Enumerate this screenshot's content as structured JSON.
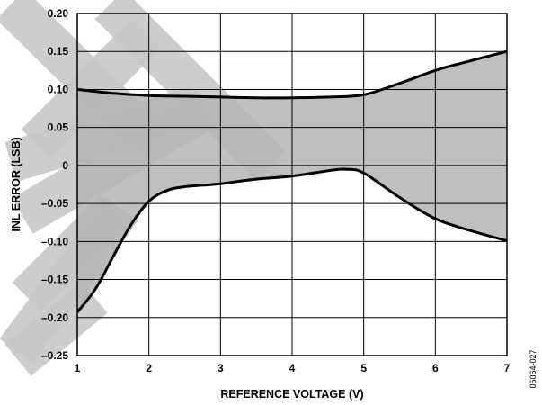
{
  "chart_data": {
    "type": "area",
    "xlabel": "REFERENCE VOLTAGE (V)",
    "ylabel": "INL ERROR (LSB)",
    "xlim": [
      1,
      7
    ],
    "ylim": [
      -0.25,
      0.2
    ],
    "x_ticks": [
      "1",
      "2",
      "3",
      "4",
      "5",
      "6",
      "7"
    ],
    "y_ticks": [
      "0.20",
      "0.15",
      "0.10",
      "0.05",
      "0",
      "–0.05",
      "–0.10",
      "–0.15",
      "–0.20",
      "–0.25"
    ],
    "grid": true,
    "series": [
      {
        "x": [
          1,
          1.5,
          2,
          2.5,
          3,
          3.5,
          4,
          4.5,
          5,
          5.5,
          6,
          6.5,
          7
        ],
        "values": [
          0.1,
          0.095,
          0.092,
          0.091,
          0.09,
          0.089,
          0.089,
          0.09,
          0.093,
          0.108,
          0.125,
          0.138,
          0.15
        ]
      },
      {
        "x": [
          1,
          1.25,
          1.5,
          1.75,
          2,
          2.25,
          2.5,
          3,
          3.5,
          4,
          4.5,
          4.75,
          5,
          5.5,
          6,
          6.5,
          7
        ],
        "values": [
          -0.193,
          -0.163,
          -0.12,
          -0.078,
          -0.047,
          -0.033,
          -0.028,
          -0.024,
          -0.018,
          -0.014,
          -0.007,
          -0.005,
          -0.01,
          -0.042,
          -0.07,
          -0.086,
          -0.099
        ]
      }
    ],
    "shaded_region": "between series",
    "colors": {
      "fill": "#b4b4b4",
      "line": "#000000",
      "watermark": "#c8c8c8"
    }
  },
  "figure_id": "06064-027"
}
